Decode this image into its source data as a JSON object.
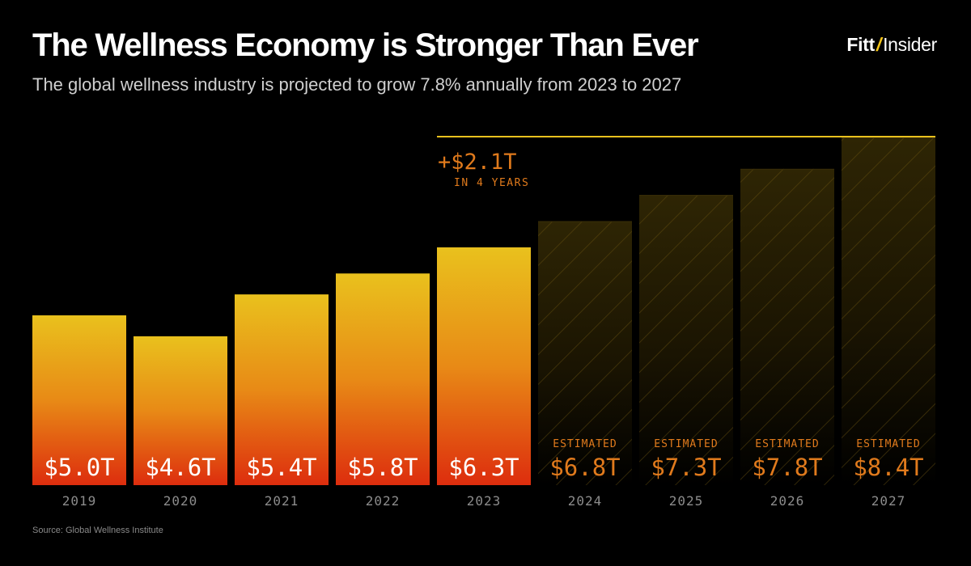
{
  "header": {
    "title": "The Wellness Economy is Stronger Than Ever",
    "subtitle": "The global wellness industry is projected to grow 7.8% annually from 2023 to 2027"
  },
  "brand": {
    "name_part1": "Fitt",
    "separator": "/",
    "name_part2": "Insider"
  },
  "footer": {
    "source": "Source: Global Wellness Institute"
  },
  "colors": {
    "background": "#000000",
    "bar_top": "#e9c11d",
    "bar_bottom": "#dd2d0e",
    "estimate_accent": "#e07a1c",
    "target_line": "#e9c11d",
    "year_label": "#8c8c8c"
  },
  "chart_data": {
    "type": "bar",
    "title": "The Wellness Economy is Stronger Than Ever",
    "xlabel": "",
    "ylabel": "",
    "categories": [
      "2019",
      "2020",
      "2021",
      "2022",
      "2023",
      "2024",
      "2025",
      "2026",
      "2027"
    ],
    "values": [
      5.0,
      4.6,
      5.4,
      5.8,
      6.3,
      6.8,
      7.3,
      7.8,
      8.4
    ],
    "value_labels": [
      "$5.0T",
      "$4.6T",
      "$5.4T",
      "$5.8T",
      "$6.3T",
      "$6.8T",
      "$7.3T",
      "$7.8T",
      "$8.4T"
    ],
    "estimated": [
      false,
      false,
      false,
      false,
      false,
      true,
      true,
      true,
      true
    ],
    "estimated_label": "ESTIMATED",
    "unit": "trillion USD",
    "annotation": {
      "value": "+$2.1T",
      "subtext": "IN 4 YEARS",
      "from_category": "2023",
      "to_category": "2027",
      "reference_value": 8.4
    }
  }
}
